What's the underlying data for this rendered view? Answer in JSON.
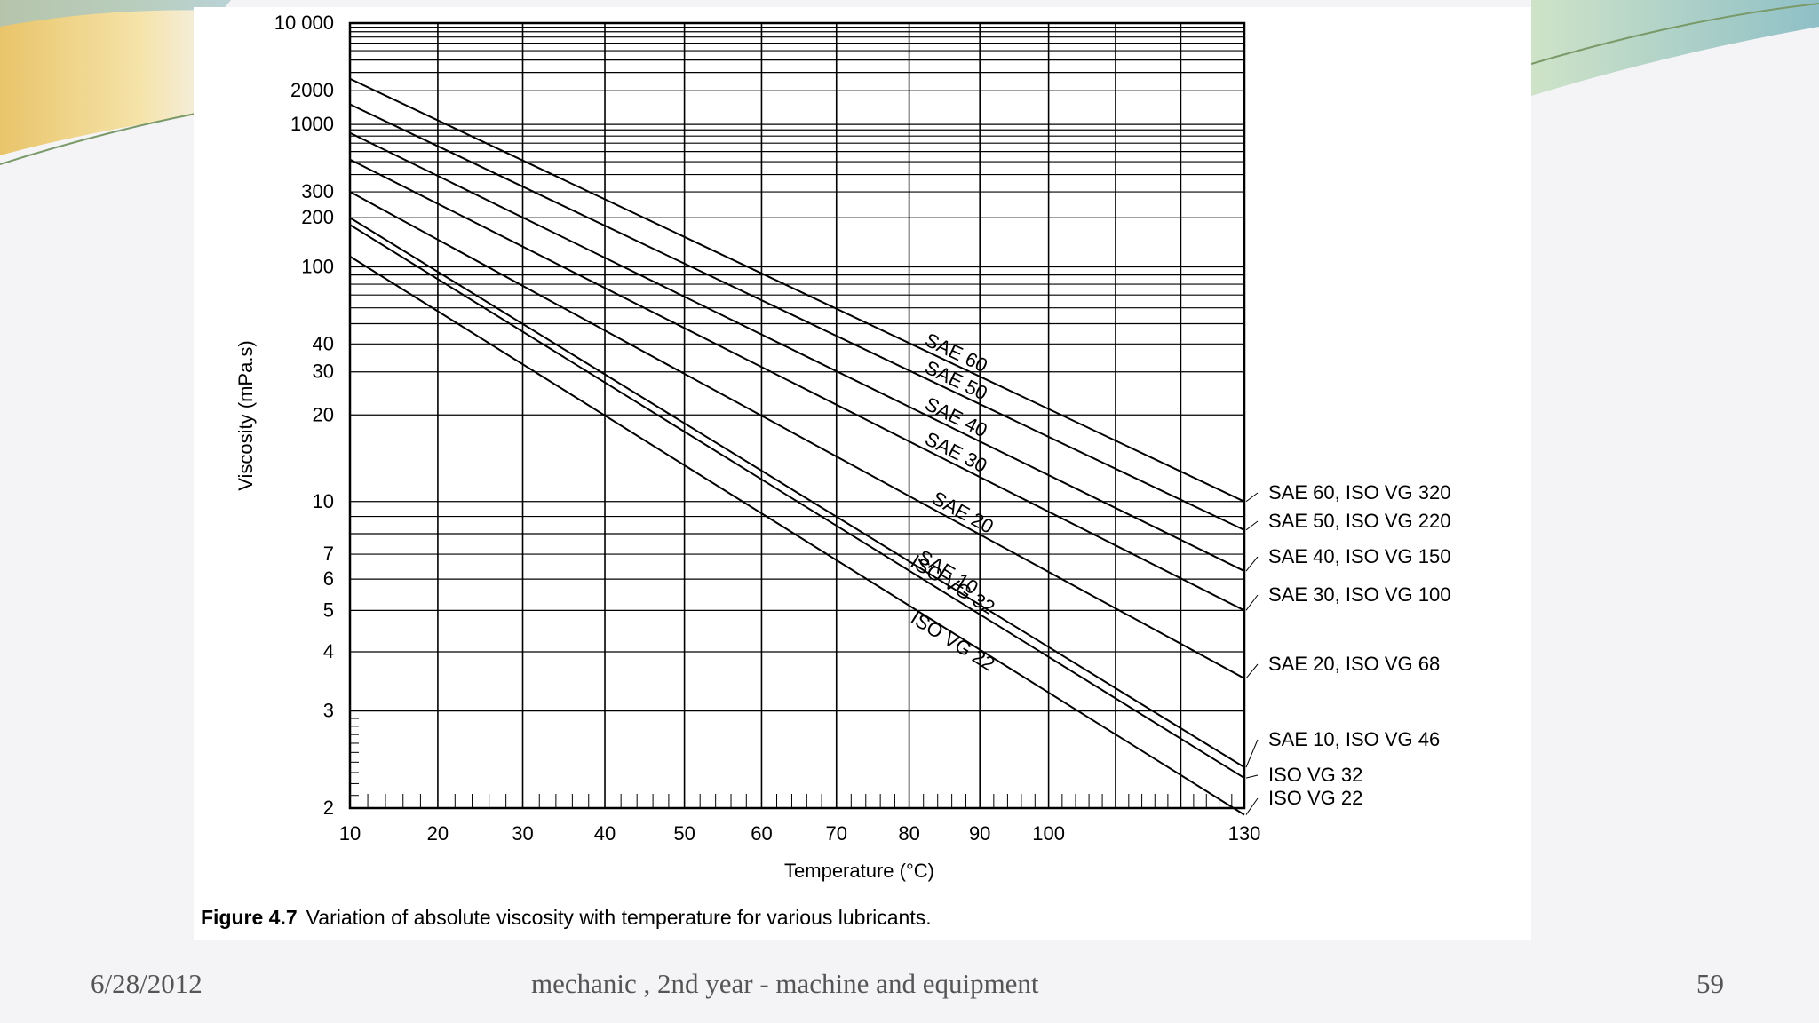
{
  "chart_data": {
    "type": "line",
    "title": "Variation of absolute viscosity with temperature for various lubricants.",
    "figure_number": "Figure 4.7",
    "xlabel": "Temperature (°C)",
    "ylabel": "Viscosity (mPa.s)",
    "xlim": [
      10,
      130
    ],
    "ylim": [
      2,
      10000
    ],
    "x_scale": "log-log (Walther)",
    "y_scale": "log",
    "x_ticks": [
      "10",
      "20",
      "30",
      "40",
      "50",
      "60",
      "70",
      "80",
      "90",
      "100",
      "130"
    ],
    "y_ticks": [
      "10 000",
      "2000",
      "1000",
      "300",
      "200",
      "100",
      "40",
      "30",
      "20",
      "10",
      "7",
      "6",
      "5",
      "4",
      "3",
      "2"
    ],
    "y_tick_values": [
      10000,
      2000,
      1000,
      300,
      200,
      100,
      40,
      30,
      20,
      10,
      7,
      6,
      5,
      4,
      3,
      2
    ],
    "series": [
      {
        "name": "SAE 60",
        "legend": "SAE 60, ISO VG 320",
        "inline_label": "SAE 60",
        "x": [
          10,
          130
        ],
        "values": [
          2600,
          10
        ]
      },
      {
        "name": "SAE 50",
        "legend": "SAE 50, ISO VG 220",
        "inline_label": "SAE 50",
        "x": [
          10,
          130
        ],
        "values": [
          1500,
          8.2
        ]
      },
      {
        "name": "SAE 40",
        "legend": "SAE 40, ISO VG 150",
        "inline_label": "SAE 40",
        "x": [
          10,
          130
        ],
        "values": [
          850,
          6.3
        ]
      },
      {
        "name": "SAE 30",
        "legend": "SAE 30, ISO VG 100",
        "inline_label": "SAE 30",
        "x": [
          10,
          130
        ],
        "values": [
          520,
          5
        ]
      },
      {
        "name": "SAE 20",
        "legend": "SAE 20, ISO VG 68",
        "inline_label": "SAE 20",
        "x": [
          10,
          130
        ],
        "values": [
          300,
          3.5
        ]
      },
      {
        "name": "SAE 10",
        "legend": "SAE 10, ISO VG 46",
        "inline_label": "SAE 10",
        "x": [
          10,
          130
        ],
        "values": [
          200,
          2.35
        ]
      },
      {
        "name": "ISO VG 32",
        "legend": "ISO VG 32",
        "inline_label": "ISO VG 32",
        "x": [
          10,
          130
        ],
        "values": [
          180,
          2.25
        ]
      },
      {
        "name": "ISO VG 22",
        "legend": "ISO VG 22",
        "inline_label": "ISO VG 22",
        "x": [
          10,
          130
        ],
        "values": [
          115,
          1.95
        ]
      }
    ],
    "grid": true
  },
  "footer": {
    "date": "6/28/2012",
    "title": "mechanic , 2nd year - machine and equipment",
    "page": "59"
  },
  "colors": {
    "line": "#000000",
    "grid": "#000000",
    "footer_text": "#555555"
  }
}
